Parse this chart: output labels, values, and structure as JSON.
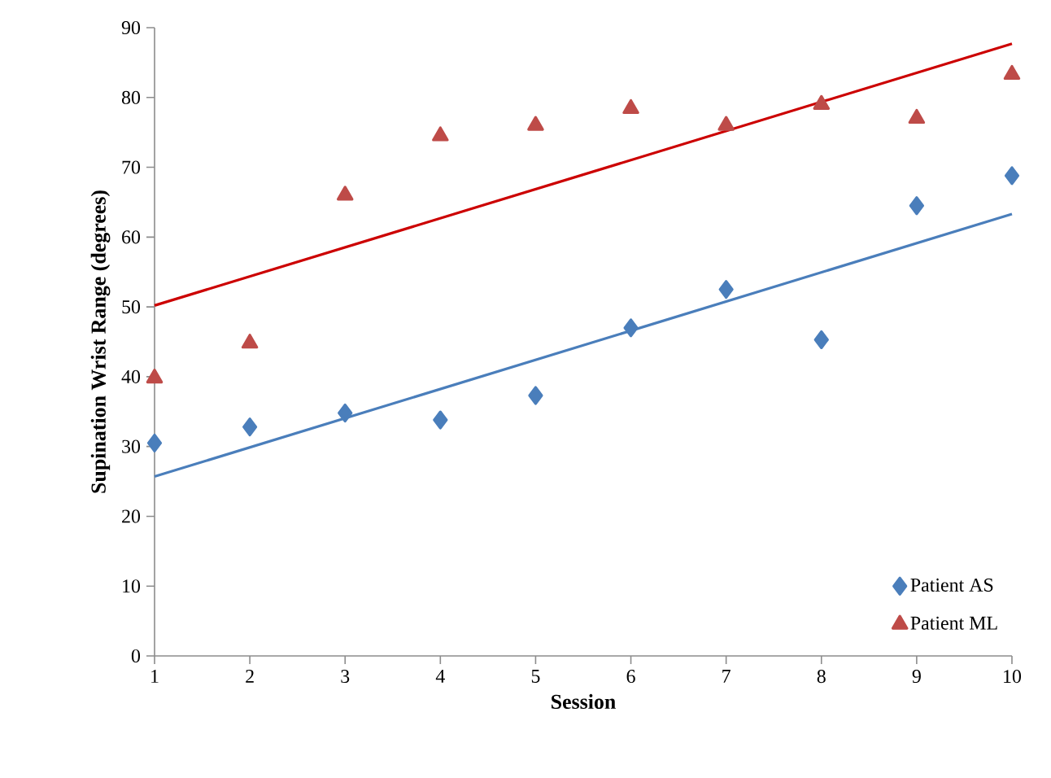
{
  "chart_data": {
    "type": "scatter",
    "xlabel": "Session",
    "ylabel": "Supination Wrist Range (degrees)",
    "xlim": [
      1,
      10
    ],
    "xticks": [
      1,
      2,
      3,
      4,
      5,
      6,
      7,
      8,
      9,
      10
    ],
    "ylim": [
      0,
      90
    ],
    "yticks": [
      0,
      10,
      20,
      30,
      40,
      50,
      60,
      70,
      80,
      90
    ],
    "grid": false,
    "legend": "bottom right",
    "series": [
      {
        "name": "Patient AS",
        "type": "scatter",
        "marker": "diamond",
        "color": "#4a7ebb",
        "x": [
          1,
          2,
          3,
          4,
          5,
          6,
          7,
          8,
          9,
          10
        ],
        "values": [
          30.5,
          32.8,
          34.8,
          33.8,
          37.3,
          47,
          52.5,
          45.3,
          64.5,
          68.8
        ]
      },
      {
        "name": "Patient ML",
        "type": "scatter",
        "marker": "triangle",
        "color": "#be4b48",
        "x": [
          1,
          2,
          3,
          4,
          5,
          6,
          7,
          8,
          9,
          10
        ],
        "values": [
          39.8,
          44.8,
          66,
          74.5,
          76,
          78.4,
          76,
          79,
          77,
          83.3
        ]
      },
      {
        "type": "line",
        "color": "#4a7ebb",
        "x": [
          1,
          10
        ],
        "values": [
          25.7,
          63.3
        ]
      },
      {
        "type": "line",
        "color": "#cc0000",
        "x": [
          1,
          10
        ],
        "values": [
          50.2,
          87.7
        ]
      }
    ]
  }
}
